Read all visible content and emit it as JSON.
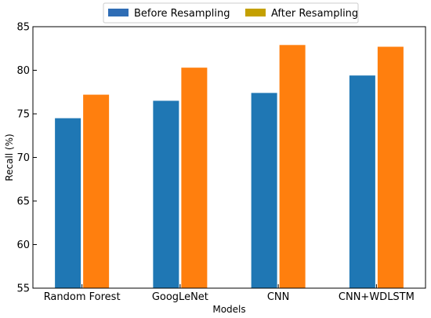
{
  "chart_data": {
    "type": "bar",
    "title": "",
    "xlabel": "Models",
    "ylabel": "Recall (%)",
    "categories": [
      "Random Forest",
      "GoogLeNet",
      "CNN",
      "CNN+WDLSTM"
    ],
    "series": [
      {
        "name": "Before Resampling",
        "values": [
          74.5,
          76.5,
          77.4,
          79.4
        ]
      },
      {
        "name": "After Resampling",
        "values": [
          77.2,
          80.3,
          82.9,
          82.7
        ]
      }
    ],
    "ylim": [
      55,
      85
    ],
    "yticks": [
      55,
      60,
      65,
      70,
      75,
      80,
      85
    ],
    "grid": false,
    "legend_position": "top-center",
    "colors": {
      "before_bar": "#1f77b4",
      "after_bar": "#ff7f0e",
      "before_legend": "#2f6db5",
      "after_legend": "#c4a000"
    }
  }
}
